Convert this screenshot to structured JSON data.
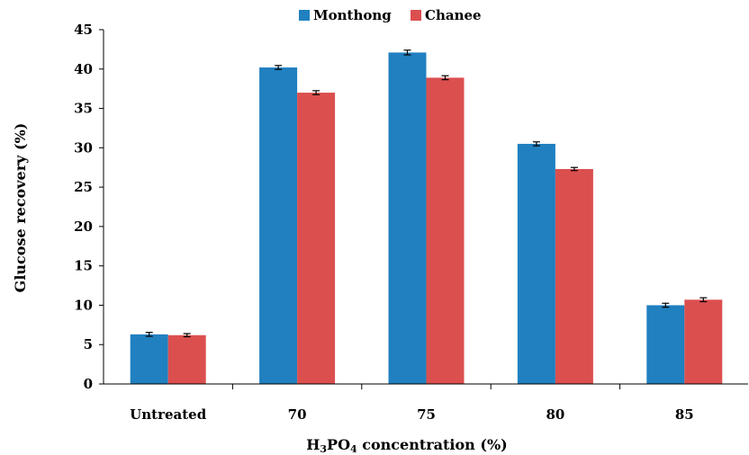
{
  "chart_data": {
    "type": "bar",
    "categories": [
      "Untreated",
      "70",
      "75",
      "80",
      "85"
    ],
    "series": [
      {
        "name": "Monthong",
        "color": "#2080C0",
        "values": [
          6.3,
          40.2,
          42.1,
          30.5,
          10.0
        ],
        "errors": [
          0.25,
          0.25,
          0.3,
          0.25,
          0.25
        ]
      },
      {
        "name": "Chanee",
        "color": "#DC4F4F",
        "values": [
          6.2,
          37.0,
          38.9,
          27.3,
          10.7
        ],
        "errors": [
          0.2,
          0.25,
          0.25,
          0.2,
          0.25
        ]
      }
    ],
    "xlabel_prefix": "H",
    "xlabel_sub1": "3",
    "xlabel_mid": "PO",
    "xlabel_sub2": "4",
    "xlabel_suffix": " concentration (%)",
    "ylabel": "Glucose recovery (%)",
    "ylim": [
      0,
      45
    ],
    "yticks": [
      0,
      5,
      10,
      15,
      20,
      25,
      30,
      35,
      40,
      45
    ],
    "grid": false,
    "legend_position": "top-center"
  }
}
